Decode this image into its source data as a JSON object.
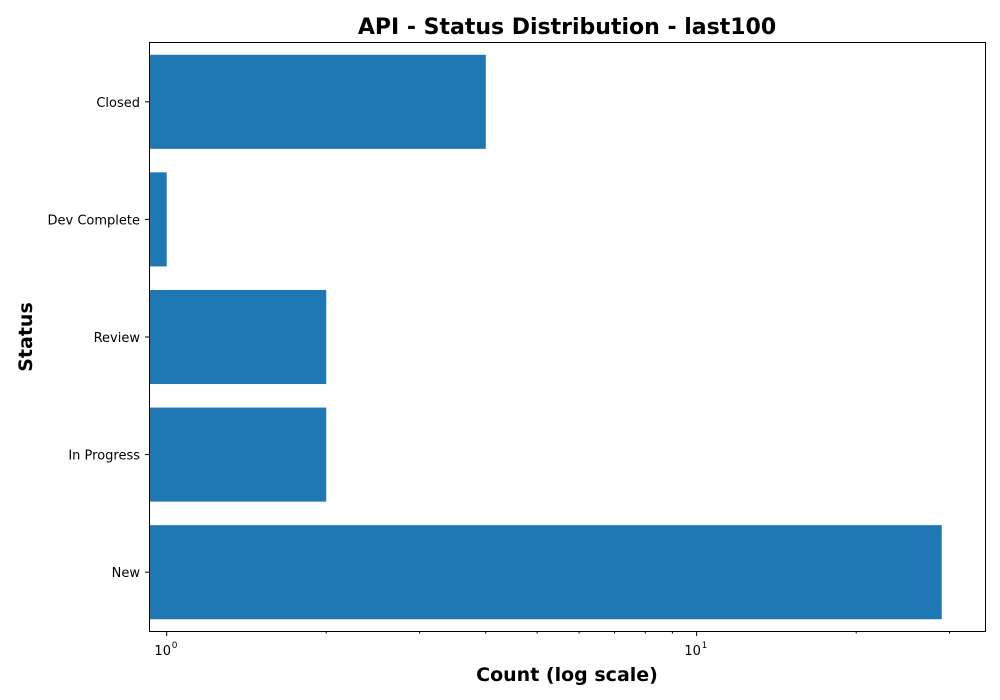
{
  "chart_data": {
    "type": "bar",
    "orientation": "horizontal",
    "title": "API - Status Distribution - last100",
    "xlabel": "Count (log scale)",
    "ylabel": "Status",
    "x_scale": "log",
    "xlim": [
      0.93,
      35
    ],
    "x_ticks": [
      {
        "value": 1,
        "base": "10",
        "exponent": "0"
      },
      {
        "value": 10,
        "base": "10",
        "exponent": "1"
      }
    ],
    "categories": [
      "Closed",
      "Dev Complete",
      "Review",
      "In Progress",
      "New"
    ],
    "values": [
      4,
      1,
      2,
      2,
      29
    ],
    "bar_color": "#1f77b4",
    "grid": false,
    "legend": "none"
  }
}
